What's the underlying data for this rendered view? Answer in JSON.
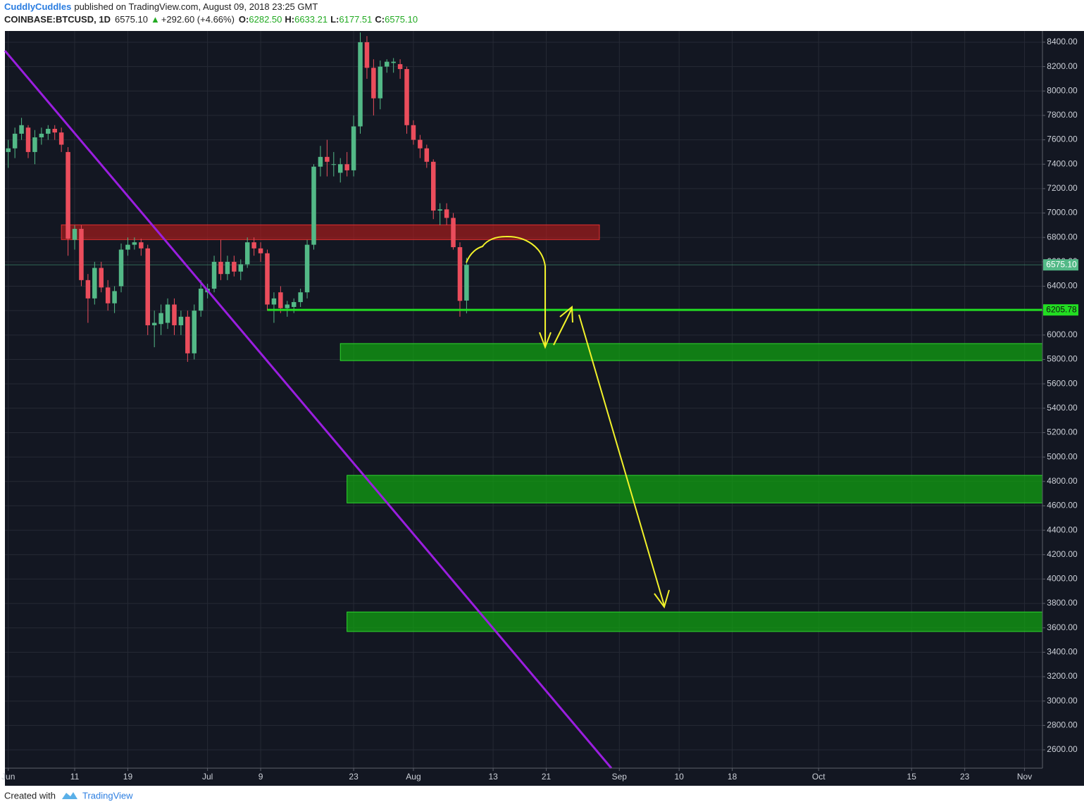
{
  "chart_data": {
    "type": "candlestick",
    "header": {
      "author": "CuddlyCuddles",
      "published": "published on TradingView.com, August 09, 2018 23:25 GMT",
      "symbol": "COINBASE:BTCUSD, 1D",
      "last": "6575.10",
      "change": "+292.60 (+4.66%)",
      "ohlc": [
        {
          "label": "O:",
          "value": "6282.50"
        },
        {
          "label": "H:",
          "value": "6633.21"
        },
        {
          "label": "L:",
          "value": "6177.51"
        },
        {
          "label": "C:",
          "value": "6575.10"
        }
      ]
    },
    "footer": {
      "prefix": "Created with",
      "brand": "TradingView"
    },
    "up_color": "#53b987",
    "down_color": "#eb4d5c",
    "x": [
      0,
      1,
      2,
      3,
      4,
      5,
      6,
      7,
      8,
      9,
      10,
      11,
      12,
      13,
      14,
      15,
      16,
      17,
      18,
      19,
      20,
      21,
      22,
      23,
      24,
      25,
      26,
      27,
      28,
      29,
      30,
      31,
      32,
      33,
      34,
      35,
      36,
      37,
      38,
      39,
      40,
      41,
      42,
      43,
      44,
      45,
      46,
      47,
      48,
      49,
      50,
      51,
      52,
      53,
      54,
      55,
      56,
      57,
      58,
      59,
      60,
      61,
      62,
      63,
      64,
      65,
      66,
      67,
      68,
      69
    ],
    "open": [
      7500,
      7530,
      7650,
      7700,
      7500,
      7620,
      7650,
      7690,
      7660,
      7500,
      6780,
      6870,
      6450,
      6300,
      6550,
      6390,
      6260,
      6400,
      6700,
      6740,
      6760,
      6710,
      6080,
      6090,
      6100,
      6250,
      6080,
      6150,
      5850,
      6200,
      6350,
      6380,
      6600,
      6500,
      6600,
      6520,
      6580,
      6760,
      6710,
      6670,
      6250,
      6350,
      6220,
      6230,
      6270,
      6350,
      6740,
      7380,
      7460,
      7400,
      7330,
      7400,
      7350,
      7710,
      8400,
      8190,
      7940,
      8200,
      8230,
      8220,
      8180,
      7720,
      7600,
      7530,
      7420,
      7020,
      7030,
      6960,
      6720,
      6282.5
    ],
    "high": [
      7600,
      7700,
      7780,
      7720,
      7680,
      7700,
      7720,
      7720,
      7700,
      7540,
      6900,
      6900,
      6500,
      6600,
      6600,
      6450,
      6400,
      6750,
      6800,
      6800,
      6790,
      6740,
      6200,
      6250,
      6300,
      6300,
      6200,
      6200,
      6250,
      6450,
      6420,
      6650,
      6780,
      6650,
      6650,
      6620,
      6800,
      6800,
      6760,
      6700,
      6350,
      6400,
      6280,
      6300,
      6380,
      6780,
      7400,
      7550,
      7600,
      7500,
      7450,
      7500,
      7800,
      8480,
      8450,
      8260,
      8250,
      8260,
      8270,
      8260,
      8200,
      7760,
      7640,
      7560,
      7440,
      7080,
      7080,
      7000,
      6760,
      6633.21
    ],
    "low": [
      7370,
      7450,
      7600,
      7450,
      7400,
      7560,
      7600,
      7600,
      7500,
      6650,
      6700,
      6400,
      6100,
      6250,
      6350,
      6200,
      6180,
      6350,
      6650,
      6700,
      6650,
      6000,
      5900,
      6000,
      6050,
      6000,
      6000,
      5780,
      5800,
      6150,
      6300,
      6350,
      6450,
      6450,
      6480,
      6450,
      6550,
      6650,
      6600,
      6200,
      6100,
      6180,
      6150,
      6180,
      6230,
      6300,
      6700,
      7300,
      7300,
      7300,
      7250,
      7300,
      7300,
      7650,
      8100,
      7800,
      7850,
      8150,
      8150,
      8100,
      7650,
      7560,
      7450,
      7370,
      6950,
      6900,
      6900,
      6700,
      6150,
      6177.51
    ],
    "close": [
      7530,
      7650,
      7720,
      7500,
      7620,
      7650,
      7690,
      7660,
      7560,
      6790,
      6870,
      6450,
      6300,
      6550,
      6390,
      6260,
      6360,
      6700,
      6740,
      6760,
      6710,
      6080,
      6100,
      6180,
      6250,
      6080,
      6150,
      5850,
      6200,
      6380,
      6380,
      6600,
      6500,
      6600,
      6520,
      6580,
      6760,
      6710,
      6670,
      6250,
      6300,
      6220,
      6250,
      6270,
      6350,
      6740,
      7380,
      7460,
      7420,
      7400,
      7400,
      7350,
      7710,
      8400,
      8190,
      7940,
      8200,
      8240,
      8240,
      8180,
      7720,
      7600,
      7530,
      7420,
      7020,
      7030,
      6960,
      6720,
      6280,
      6575.1
    ],
    "last_price": {
      "value": 6575.1,
      "label": "6575.10"
    },
    "level": {
      "value": 6205.78,
      "label": "6205.78",
      "start": 39,
      "color": "#22dd22"
    },
    "resistance_zone": {
      "from": 6782,
      "to": 6903,
      "start": 8,
      "end": 89,
      "color": "#b01c1c"
    },
    "support_zones": [
      {
        "from": 5790,
        "to": 5930,
        "start": 50
      },
      {
        "from": 4624,
        "to": 4850,
        "start": 51
      },
      {
        "from": 3570,
        "to": 3730,
        "start": 51
      }
    ],
    "support_color": "#12a012",
    "trendline": {
      "x": [
        -0.5,
        90.8
      ],
      "y": [
        8330,
        2450
      ],
      "color": "#9b1ee0"
    },
    "xlim": [
      -0.5,
      155.7
    ],
    "ylim": [
      2450,
      8492
    ],
    "xticks": [
      {
        "value": 0,
        "label": "Jun"
      },
      {
        "value": 10,
        "label": "11"
      },
      {
        "value": 18,
        "label": "19"
      },
      {
        "value": 30,
        "label": "Jul"
      },
      {
        "value": 38,
        "label": "9"
      },
      {
        "value": 52,
        "label": "23"
      },
      {
        "value": 61,
        "label": "Aug"
      },
      {
        "value": 73,
        "label": "13"
      },
      {
        "value": 81,
        "label": "21"
      },
      {
        "value": 92,
        "label": "Sep"
      },
      {
        "value": 101,
        "label": "10"
      },
      {
        "value": 109,
        "label": "18"
      },
      {
        "value": 122,
        "label": "Oct"
      },
      {
        "value": 136,
        "label": "15"
      },
      {
        "value": 144,
        "label": "23"
      },
      {
        "value": 153,
        "label": "Nov"
      }
    ],
    "yticks": [
      {
        "value": 2600,
        "label": "2600.00"
      },
      {
        "value": 2800,
        "label": "2800.00"
      },
      {
        "value": 3000,
        "label": "3000.00"
      },
      {
        "value": 3200,
        "label": "3200.00"
      },
      {
        "value": 3400,
        "label": "3400.00"
      },
      {
        "value": 3600,
        "label": "3600.00"
      },
      {
        "value": 3800,
        "label": "3800.00"
      },
      {
        "value": 4000,
        "label": "4000.00"
      },
      {
        "value": 4200,
        "label": "4200.00"
      },
      {
        "value": 4400,
        "label": "4400.00"
      },
      {
        "value": 4600,
        "label": "4600.00"
      },
      {
        "value": 4800,
        "label": "4800.00"
      },
      {
        "value": 5000,
        "label": "5000.00"
      },
      {
        "value": 5200,
        "label": "5200.00"
      },
      {
        "value": 5400,
        "label": "5400.00"
      },
      {
        "value": 5600,
        "label": "5600.00"
      },
      {
        "value": 5800,
        "label": "5800.00"
      },
      {
        "value": 6000,
        "label": "6000.00"
      },
      {
        "value": 6200,
        "label": "6200.00"
      },
      {
        "value": 6400,
        "label": "6400.00"
      },
      {
        "value": 6600,
        "label": "6600.00"
      },
      {
        "value": 6800,
        "label": "6800.00"
      },
      {
        "value": 7000,
        "label": "7000.00"
      },
      {
        "value": 7200,
        "label": "7200.00"
      },
      {
        "value": 7400,
        "label": "7400.00"
      },
      {
        "value": 7600,
        "label": "7600.00"
      },
      {
        "value": 7800,
        "label": "7800.00"
      },
      {
        "value": 8000,
        "label": "8000.00"
      },
      {
        "value": 8200,
        "label": "8200.00"
      },
      {
        "value": 8400,
        "label": "8400.00"
      }
    ],
    "grid": true
  }
}
